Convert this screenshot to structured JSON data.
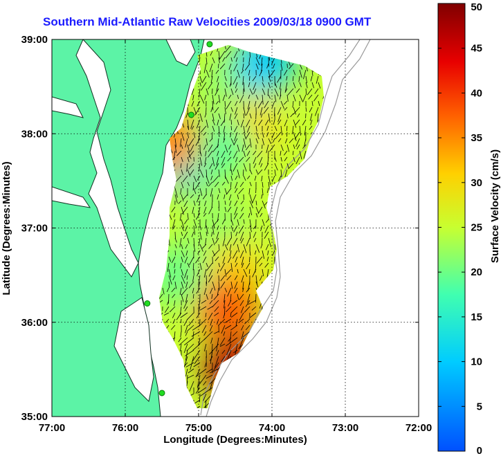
{
  "title": "Southern Mid-Atlantic Raw Velocities 2009/03/18 0900 GMT",
  "chart_data": {
    "type": "heatmap",
    "xlabel": "Longitude (Degrees:Minutes)",
    "ylabel": "Latitude (Degrees:Minutes)",
    "xlim": [
      -77,
      -72
    ],
    "ylim": [
      35,
      39
    ],
    "x_ticks": [
      {
        "value": -77,
        "label": "77:00"
      },
      {
        "value": -76,
        "label": "76:00"
      },
      {
        "value": -75,
        "label": "75:00"
      },
      {
        "value": -74,
        "label": "74:00"
      },
      {
        "value": -73,
        "label": "73:00"
      },
      {
        "value": -72,
        "label": "72:00"
      }
    ],
    "y_ticks": [
      {
        "value": 35,
        "label": "35:00"
      },
      {
        "value": 36,
        "label": "36:00"
      },
      {
        "value": 37,
        "label": "37:00"
      },
      {
        "value": 38,
        "label": "38:00"
      },
      {
        "value": 39,
        "label": "39:00"
      }
    ],
    "grid": true,
    "colorbar": {
      "label": "Surface Velocity (cm/s)",
      "min": 0,
      "max": 50,
      "ticks": [
        {
          "value": 0,
          "label": "0"
        },
        {
          "value": 5,
          "label": "5"
        },
        {
          "value": 10,
          "label": "10"
        },
        {
          "value": 15,
          "label": "15"
        },
        {
          "value": 20,
          "label": "20"
        },
        {
          "value": 25,
          "label": "25"
        },
        {
          "value": 30,
          "label": "30"
        },
        {
          "value": 35,
          "label": "35"
        },
        {
          "value": 40,
          "label": "40"
        },
        {
          "value": 45,
          "label": "45"
        },
        {
          "value": 50,
          "label": "50"
        }
      ]
    },
    "field_regions": [
      {
        "lon": -74.6,
        "lat": 38.5,
        "speed": 22
      },
      {
        "lon": -74.1,
        "lat": 38.75,
        "speed": 10
      },
      {
        "lon": -74.3,
        "lat": 38.05,
        "speed": 30
      },
      {
        "lon": -75.2,
        "lat": 37.7,
        "speed": 12
      },
      {
        "lon": -74.7,
        "lat": 37.85,
        "speed": 19
      },
      {
        "lon": -74.7,
        "lat": 37.0,
        "speed": 22
      },
      {
        "lon": -74.5,
        "lat": 36.55,
        "speed": 30
      },
      {
        "lon": -74.6,
        "lat": 36.15,
        "speed": 38
      },
      {
        "lon": -74.5,
        "lat": 35.5,
        "speed": 47
      },
      {
        "lon": -75.3,
        "lat": 36.5,
        "speed": 20
      },
      {
        "lon": -75.4,
        "lat": 37.9,
        "speed": 35
      }
    ],
    "stations": [
      {
        "name": "",
        "lon": -74.85,
        "lat": 38.95
      },
      {
        "name": "",
        "lon": -75.1,
        "lat": 38.2
      },
      {
        "name": "",
        "lon": -75.7,
        "lat": 36.2
      },
      {
        "name": "",
        "lon": -75.5,
        "lat": 35.25
      }
    ]
  },
  "colors": {
    "land": "#5cf3a6",
    "title": "#1a1aff",
    "station": "#22dd22",
    "bathymetry": "#999999"
  }
}
